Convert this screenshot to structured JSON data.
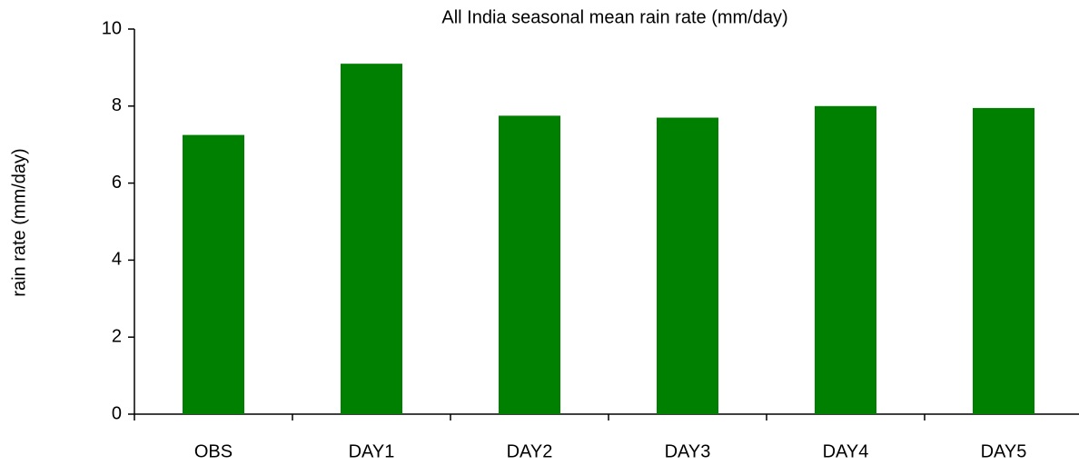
{
  "chart_data": {
    "type": "bar",
    "title": "All India seasonal mean rain rate (mm/day)",
    "y_label": "rain rate (mm/day)",
    "categories": [
      "OBS",
      "DAY1",
      "DAY2",
      "DAY3",
      "DAY4",
      "DAY5"
    ],
    "values": [
      7.25,
      9.1,
      7.75,
      7.7,
      8.0,
      7.95
    ],
    "color": "#008000",
    "ylim": [
      0,
      10
    ],
    "yticks": [
      0,
      2,
      4,
      6,
      8,
      10
    ],
    "grid": false
  }
}
